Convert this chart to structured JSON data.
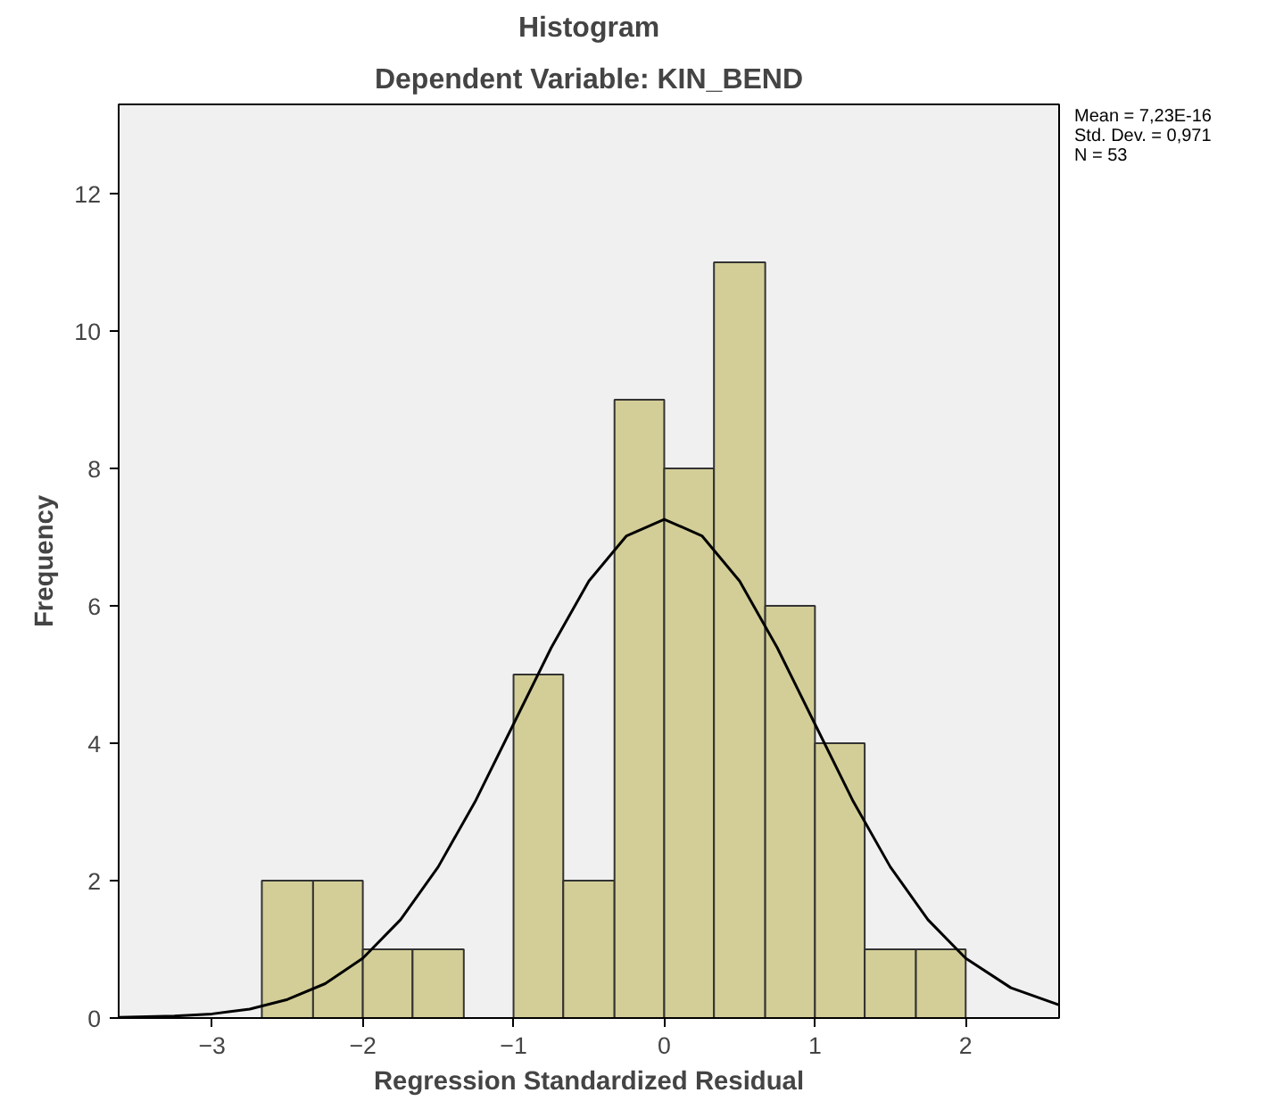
{
  "chart_data": {
    "type": "histogram",
    "title": "Histogram",
    "subtitle": "Dependent Variable: KIN_BEND",
    "xlabel": "Regression Standardized Residual",
    "ylabel": "Frequency",
    "bins": [
      -2.67,
      -2.33,
      -2,
      -1.67,
      -1.33,
      -1,
      -0.67,
      -0.33,
      0,
      0.33,
      0.67,
      1,
      1.33,
      1.67,
      2
    ],
    "values": [
      2,
      2,
      1,
      1,
      0,
      5,
      2,
      9,
      8,
      11,
      6,
      4,
      1,
      1
    ],
    "color": "#d3ce97",
    "series": [
      {
        "type": "line",
        "color": "#000000",
        "x": [
          -3.62,
          -3.25,
          -3,
          -2.75,
          -2.5,
          -2.25,
          -2,
          -1.75,
          -1.5,
          -1.25,
          -1,
          -0.75,
          -0.5,
          -0.25,
          0,
          0.25,
          0.5,
          0.75,
          1,
          1.25,
          1.5,
          1.75,
          2,
          2.3,
          2.62
        ],
        "values": [
          0.01,
          0.03,
          0.06,
          0.13,
          0.27,
          0.5,
          0.87,
          1.43,
          2.2,
          3.17,
          4.28,
          5.39,
          6.36,
          7.02,
          7.26,
          7.02,
          6.36,
          5.39,
          4.28,
          3.17,
          2.2,
          1.43,
          0.87,
          0.44,
          0.19
        ]
      }
    ],
    "xlim": [
      -3.62,
      2.62
    ],
    "xticks": [
      -3,
      -2,
      -1,
      0,
      1,
      2
    ],
    "ylim": [
      0,
      13.3
    ],
    "yticks": [
      0,
      2,
      4,
      6,
      8,
      10,
      12
    ],
    "grid": false,
    "annotations": [
      "Mean = 7,23E-16",
      "Std. Dev. = 0,971",
      "N = 53"
    ]
  }
}
